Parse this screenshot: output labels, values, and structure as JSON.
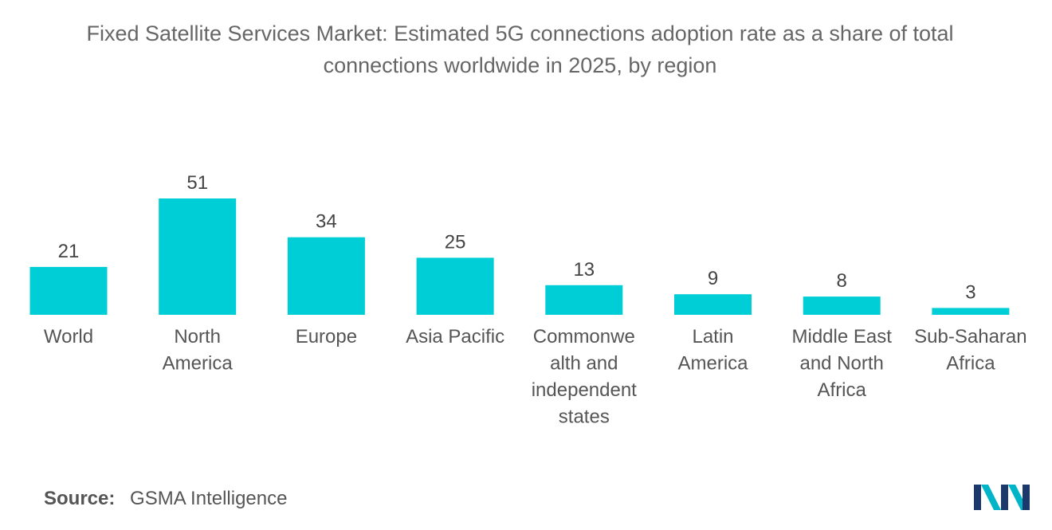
{
  "chart_data": {
    "type": "bar",
    "title": "Fixed Satellite Services Market: Estimated 5G connections adoption rate as a share of total connections worldwide in 2025, by region",
    "title_lines": [
      "Fixed Satellite Services Market: Estimated 5G connections adoption rate as a share of total",
      "connections worldwide in 2025, by region"
    ],
    "categories": [
      "World",
      "North America",
      "Europe",
      "Asia Pacific",
      "Commonwealth and independent states",
      "Latin America",
      "Middle East and North Africa",
      "Sub-Saharan Africa"
    ],
    "category_label_lines": [
      [
        "World"
      ],
      [
        "North",
        "America"
      ],
      [
        "Europe"
      ],
      [
        "Asia Pacific"
      ],
      [
        "Commonwe",
        "alth and",
        "independent",
        "states"
      ],
      [
        "Latin",
        "America"
      ],
      [
        "Middle East",
        "and North",
        "Africa"
      ],
      [
        "Sub-Saharan",
        "Africa"
      ]
    ],
    "values": [
      21,
      51,
      34,
      25,
      13,
      9,
      8,
      3
    ],
    "xlabel": "",
    "ylabel": "",
    "ylim": [
      0,
      51
    ],
    "grid": false,
    "legend": "none",
    "bar_color": "#00CED6"
  },
  "source": {
    "label": "Source:",
    "text": "GSMA Intelligence"
  },
  "logo": {
    "name": "mordor-intelligence-logo",
    "colors": [
      "#1B3A6B",
      "#00B5C8"
    ]
  }
}
